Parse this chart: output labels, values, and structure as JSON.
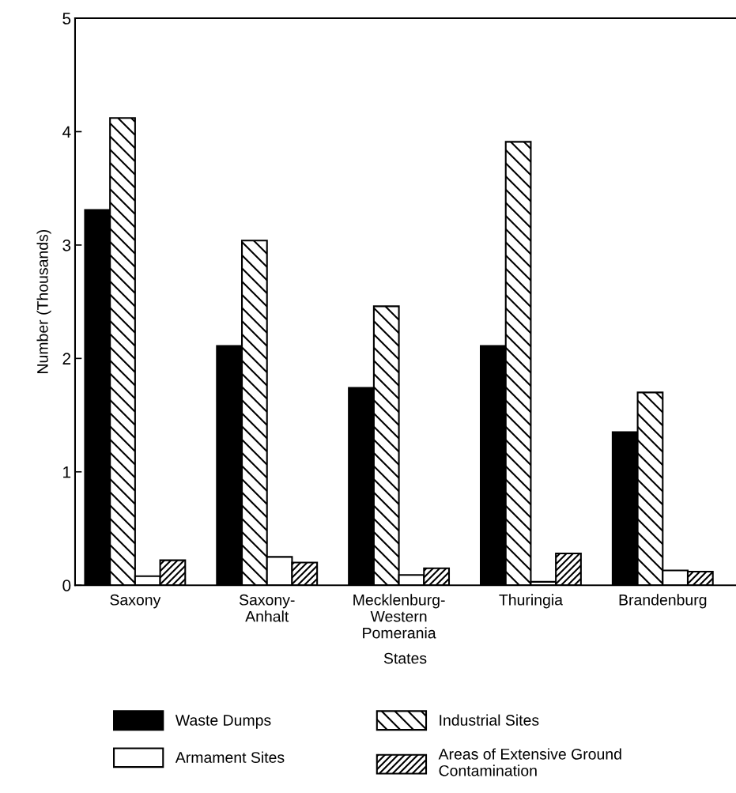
{
  "chart_data": {
    "type": "bar",
    "xlabel": "States",
    "ylabel": "Number (Thousands)",
    "categories": [
      "Saxony",
      "Saxony-\nAnhalt",
      "Mecklenburg-\nWestern\nPomerania",
      "Thuringia",
      "Brandenburg"
    ],
    "series": [
      {
        "name": "Waste Dumps",
        "color": "#000000",
        "values": [
          3.31,
          2.11,
          1.74,
          2.11,
          1.35
        ]
      },
      {
        "name": "Industrial Sites",
        "color": "#000000",
        "values": [
          4.12,
          3.04,
          2.46,
          3.91,
          1.7
        ]
      },
      {
        "name": "Armament Sites",
        "color": "#ffffff",
        "values": [
          0.08,
          0.25,
          0.09,
          0.03,
          0.13
        ]
      },
      {
        "name": "Areas of Extensive Ground\nContamination",
        "color": "#000000",
        "values": [
          0.22,
          0.2,
          0.15,
          0.28,
          0.12
        ]
      }
    ],
    "ylim": [
      0,
      5
    ],
    "yticks": [
      0,
      1,
      2,
      3,
      4,
      5
    ],
    "grid": false,
    "legend": "bottom"
  }
}
